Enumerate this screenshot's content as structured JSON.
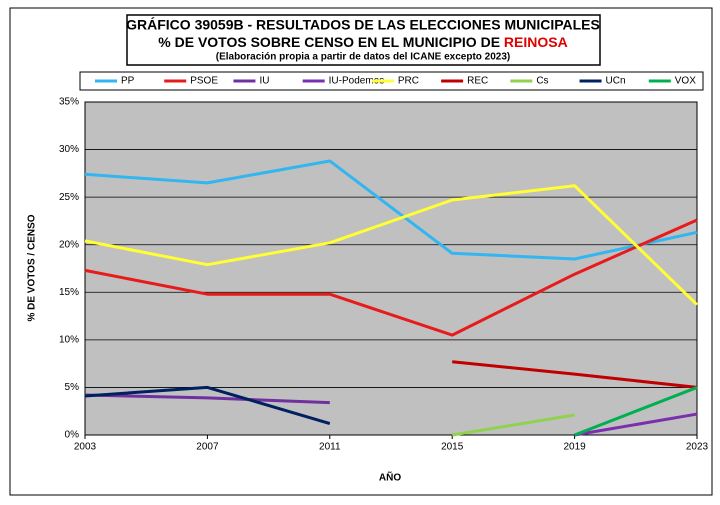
{
  "chart_data": {
    "type": "line",
    "title": "GRÁFICO 39059B - RESULTADOS DE LAS ELECCIONES MUNICIPALES",
    "title_line2": "% DE VOTOS SOBRE CENSO EN EL MUNICIPIO DE",
    "title_highlight": "REINOSA",
    "subtitle": "(Elaboración propia a partir de datos del ICANE excepto 2023)",
    "xlabel": "AÑO",
    "ylabel": "% DE VOTOS / CENSO",
    "x": [
      2003,
      2007,
      2011,
      2015,
      2019,
      2023
    ],
    "xlim": [
      2003,
      2023
    ],
    "xticks": [
      2003,
      2007,
      2011,
      2015,
      2019,
      2023
    ],
    "ylim": [
      0,
      35
    ],
    "yticks": [
      {
        "value": 0,
        "label": "0%"
      },
      {
        "value": 5,
        "label": "5%"
      },
      {
        "value": 10,
        "label": "10%"
      },
      {
        "value": 15,
        "label": "15%"
      },
      {
        "value": 20,
        "label": "20%"
      },
      {
        "value": 25,
        "label": "25%"
      },
      {
        "value": 30,
        "label": "30%"
      },
      {
        "value": 35,
        "label": "35%"
      }
    ],
    "grid": true,
    "legend": "top",
    "series": [
      {
        "name": "PP",
        "color": "#33b5f0",
        "values": [
          27.4,
          26.5,
          28.8,
          19.1,
          18.5,
          21.3
        ]
      },
      {
        "name": "PSOE",
        "color": "#e81b1b",
        "values": [
          17.3,
          14.8,
          14.8,
          10.5,
          16.9,
          22.6
        ]
      },
      {
        "name": "IU",
        "color": "#7030a0",
        "values": [
          4.2,
          3.9,
          3.4,
          null,
          null,
          null
        ]
      },
      {
        "name": "IU-Podemos",
        "color": "#7b2fb0",
        "values": [
          null,
          null,
          null,
          null,
          0,
          2.2
        ]
      },
      {
        "name": "PRC",
        "color": "#ffff33",
        "values": [
          20.4,
          17.9,
          20.2,
          24.7,
          26.2,
          13.7
        ]
      },
      {
        "name": "REC",
        "color": "#c00000",
        "values": [
          null,
          null,
          null,
          7.7,
          6.4,
          5.0
        ]
      },
      {
        "name": "Cs",
        "color": "#92d050",
        "values": [
          null,
          null,
          null,
          0,
          2.1,
          null
        ]
      },
      {
        "name": "UCn",
        "color": "#002060",
        "values": [
          4.1,
          5.0,
          1.2,
          null,
          null,
          null
        ]
      },
      {
        "name": "VOX",
        "color": "#00b050",
        "values": [
          null,
          null,
          null,
          null,
          0,
          5.0
        ]
      }
    ]
  }
}
